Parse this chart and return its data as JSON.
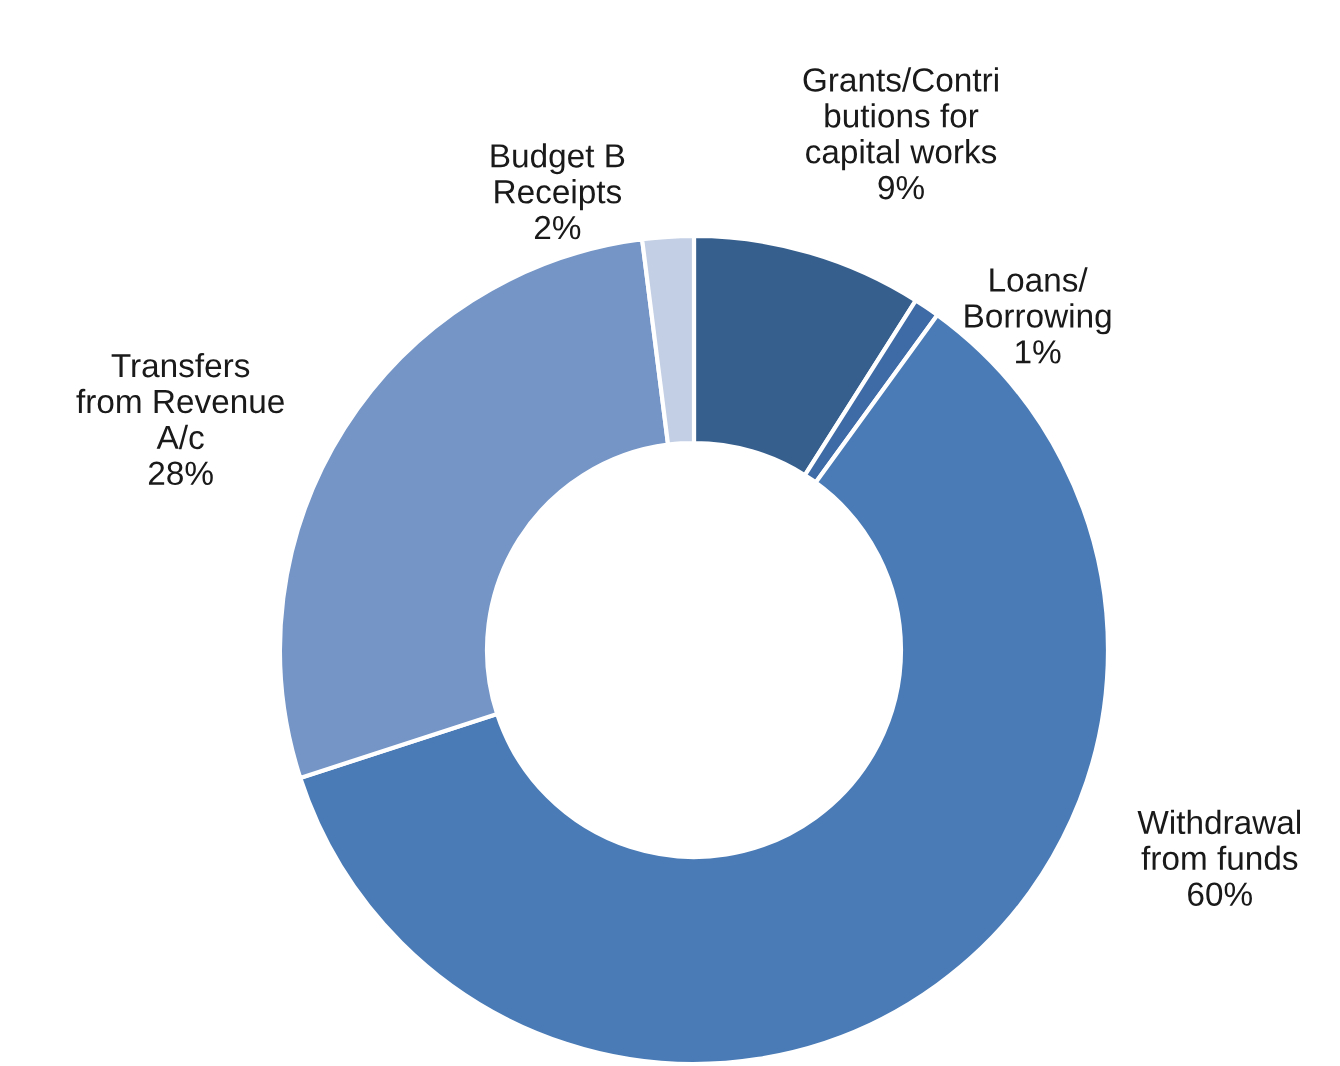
{
  "chart_data": {
    "type": "donut",
    "categories": [
      "Grants/Contri\nbutions for\ncapital works",
      "Loans/\nBorrowing",
      "Withdrawal\nfrom funds",
      "Transfers\nfrom Revenue\nA/c",
      "Budget B\nReceipts"
    ],
    "values": [
      9,
      1,
      60,
      28,
      2
    ],
    "value_labels": [
      "9%",
      "1%",
      "60%",
      "28%",
      "2%"
    ],
    "colors": [
      "#375f8e",
      "#3e6aa6",
      "#4a7bb6",
      "#7495c6",
      "#c3cfe4"
    ],
    "legend": false
  }
}
